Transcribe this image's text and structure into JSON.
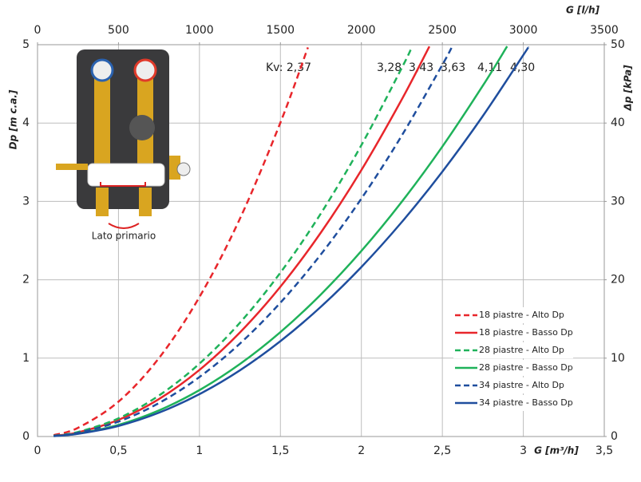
{
  "chart_data": {
    "type": "line",
    "xlabel": "G [m³/h]",
    "x2label": "G [l/h]",
    "ylabel": "Dp [m c.a.]",
    "y2label": "Δp [kPa]",
    "xlim": [
      0,
      3.5
    ],
    "xticks": [
      0,
      {
        "value": 0.5,
        "label": "0,5"
      },
      1,
      {
        "value": 1.5,
        "label": "1,5"
      },
      2,
      {
        "value": 2.5,
        "label": "2,5"
      },
      3,
      {
        "value": 3.5,
        "label": "3,5"
      }
    ],
    "x2lim": [
      0,
      3500
    ],
    "x2ticks": [
      0,
      500,
      1000,
      1500,
      2000,
      2500,
      3000,
      3500
    ],
    "ylim": [
      0,
      5
    ],
    "yticks": [
      0,
      1,
      2,
      3,
      4,
      5
    ],
    "y2lim": [
      0,
      50
    ],
    "y2ticks": [
      0,
      10,
      20,
      30,
      40,
      50
    ],
    "grid": true,
    "annotations": [
      "Kv: 2,37",
      "3,28",
      "3,43",
      "3,63",
      "4,11",
      "4,30"
    ],
    "image_caption": "Lato primario",
    "series": [
      {
        "name": "18 piastre - Alto Dp",
        "color": "#e8262b",
        "dashed": true,
        "x": [
          0.1,
          0.25,
          0.5,
          0.75,
          1,
          1.25,
          1.5,
          1.67
        ],
        "values": [
          0.018,
          0.111,
          0.445,
          1.001,
          1.78,
          2.78,
          4.006,
          4.965
        ]
      },
      {
        "name": "18 piastre - Basso Dp",
        "color": "#e8262b",
        "dashed": false,
        "x": [
          0.1,
          0.25,
          0.5,
          0.75,
          1,
          1.25,
          1.5,
          1.75,
          2,
          2.25,
          2.42
        ],
        "values": [
          0.0085,
          0.053,
          0.2125,
          0.478,
          0.85,
          1.328,
          1.912,
          2.603,
          3.4,
          4.303,
          4.978
        ]
      },
      {
        "name": "28 piastre - Alto Dp",
        "color": "#1fb25a",
        "dashed": true,
        "x": [
          0.1,
          0.25,
          0.5,
          0.75,
          1,
          1.25,
          1.5,
          1.75,
          2,
          2.25,
          2.31
        ],
        "values": [
          0.0093,
          0.058,
          0.232,
          0.523,
          0.93,
          1.452,
          2.091,
          2.847,
          3.718,
          4.706,
          4.96
        ]
      },
      {
        "name": "28 piastre - Basso Dp",
        "color": "#1fb25a",
        "dashed": false,
        "x": [
          0.1,
          0.25,
          0.5,
          0.75,
          1,
          1.25,
          1.5,
          1.75,
          2,
          2.25,
          2.5,
          2.75,
          2.9
        ],
        "values": [
          0.0059,
          0.037,
          0.148,
          0.333,
          0.592,
          0.925,
          1.332,
          1.813,
          2.368,
          2.997,
          3.7,
          4.477,
          4.979
        ]
      },
      {
        "name": "34 piastre - Alto Dp",
        "color": "#1f4e9e",
        "dashed": true,
        "x": [
          0.1,
          0.25,
          0.5,
          0.75,
          1,
          1.25,
          1.5,
          1.75,
          2,
          2.25,
          2.5,
          2.56
        ],
        "values": [
          0.0076,
          0.047,
          0.19,
          0.427,
          0.759,
          1.186,
          1.708,
          2.324,
          3.036,
          3.842,
          4.743,
          4.974
        ]
      },
      {
        "name": "34 piastre - Basso Dp",
        "color": "#1f4e9e",
        "dashed": false,
        "x": [
          0.1,
          0.25,
          0.5,
          0.75,
          1,
          1.25,
          1.5,
          1.75,
          2,
          2.25,
          2.5,
          2.75,
          3,
          3.03
        ],
        "values": [
          0.0054,
          0.034,
          0.135,
          0.304,
          0.541,
          0.845,
          1.217,
          1.656,
          2.163,
          2.738,
          3.38,
          4.09,
          4.868,
          4.965
        ]
      }
    ]
  }
}
